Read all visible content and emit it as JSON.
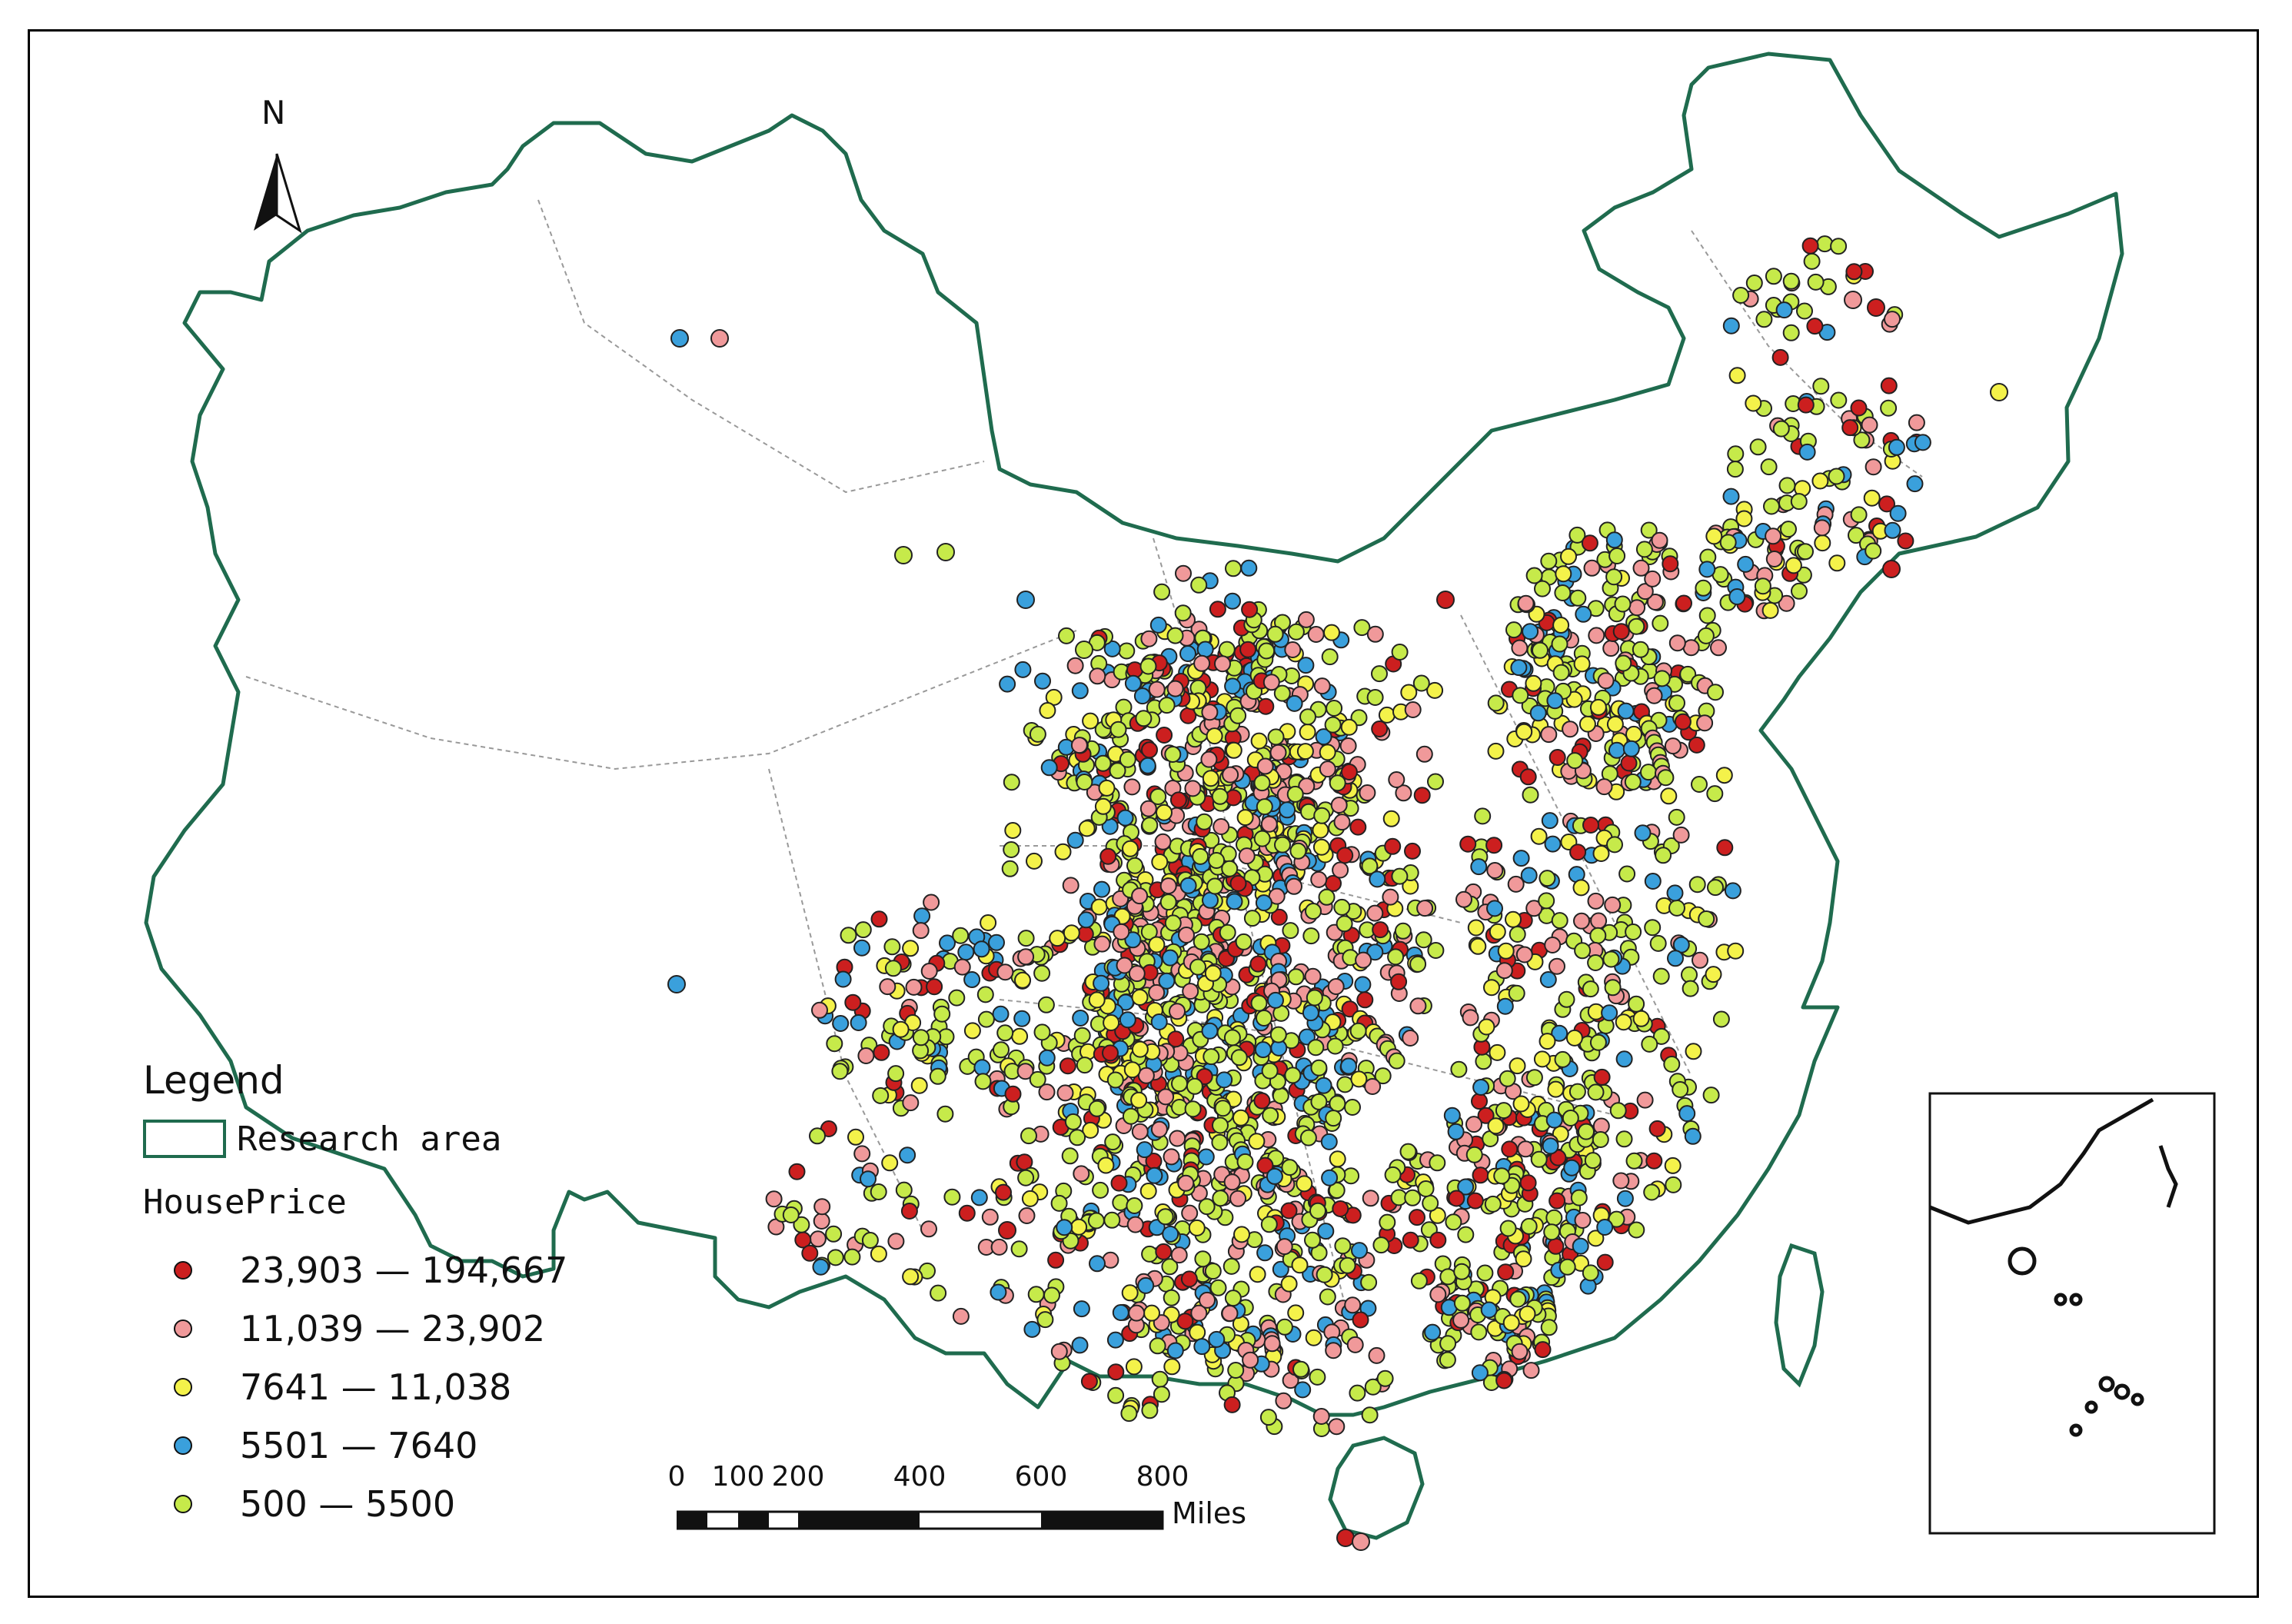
{
  "map": {
    "north_arrow_label": "N",
    "legend": {
      "title": "Legend",
      "research_area_label": "Research area",
      "field_label": "HousePrice",
      "classes": [
        {
          "label": "23,903 — 194,667",
          "color": "#cc1f1f"
        },
        {
          "label": "11,039 — 23,902",
          "color": "#f0999a"
        },
        {
          "label": "7641 — 11,038",
          "color": "#f4f24a"
        },
        {
          "label": "5501 — 7640",
          "color": "#3aa0dc"
        },
        {
          "label": "500 — 5500",
          "color": "#c6ea4a"
        }
      ]
    },
    "scale_bar": {
      "ticks": [
        "0",
        "100",
        "200",
        "400",
        "600",
        "800"
      ],
      "units": "Miles"
    },
    "boundary_color": "#1f6b4e"
  }
}
